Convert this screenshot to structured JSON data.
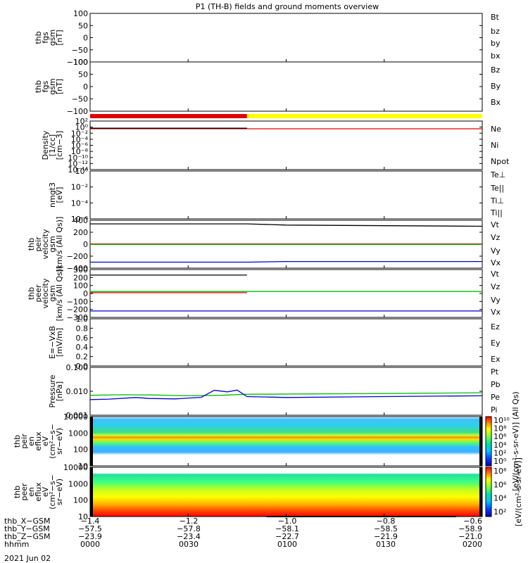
{
  "title": "P1 (TH-B) fields and ground moments overview",
  "date": "2021 Jun 02",
  "colors": {
    "black": "#000000",
    "red": "#e00000",
    "green": "#00c000",
    "blue": "#0000d0",
    "yellow": "#ffff00"
  },
  "chart_data": [
    {
      "id": "p1",
      "type": "line",
      "ylabel": [
        "thb",
        "fgs",
        "gsm",
        "[nT]"
      ],
      "yticks": [
        "100",
        "50",
        "0",
        "−50",
        "−100"
      ],
      "ylim": [
        -100,
        100
      ],
      "legend": [
        {
          "name": "Bt",
          "color": "black"
        },
        {
          "name": "bz",
          "color": "red"
        },
        {
          "name": "by",
          "color": "green"
        },
        {
          "name": "bx",
          "color": "blue"
        }
      ],
      "series": []
    },
    {
      "id": "p2",
      "type": "line",
      "ylabel": [
        "thb",
        "fgs",
        "gsm",
        "[nT]"
      ],
      "yticks": [
        "100",
        "50",
        "0",
        "−50",
        "−100"
      ],
      "ylim": [
        -130,
        100
      ],
      "legend": [
        {
          "name": "Bz",
          "color": "red"
        },
        {
          "name": "By",
          "color": "green"
        },
        {
          "name": "Bx",
          "color": "blue"
        }
      ],
      "series": []
    },
    {
      "id": "mode_bar",
      "type": "bar",
      "segments": [
        {
          "from": "0000",
          "to": "0048",
          "color": "red"
        },
        {
          "from": "0048",
          "to": "0200",
          "color": "yellow"
        }
      ]
    },
    {
      "id": "p3",
      "type": "line",
      "ylabel": [
        "Density",
        "[1/cc]",
        "[cm−3]"
      ],
      "yticks": [
        "10²",
        "10⁰",
        "10⁻²",
        "10⁻⁴",
        "10⁻⁶",
        "10⁻⁸",
        "10⁻¹⁰",
        "10⁻¹²",
        "10⁻¹⁴"
      ],
      "ylim": [
        -15,
        2
      ],
      "yscale": "log",
      "legend": [
        {
          "name": "Ne",
          "color": "red"
        },
        {
          "name": "Ni",
          "color": "black"
        },
        {
          "name": "Npot",
          "color": "blue"
        }
      ],
      "series": [
        {
          "name": "Ne",
          "color": "red",
          "x": [
            0,
            48,
            120
          ],
          "y": [
            0.2,
            0.2,
            0.2
          ]
        },
        {
          "name": "Ni",
          "color": "black",
          "x": [
            0,
            48
          ],
          "y": [
            0.3,
            0.3
          ]
        }
      ]
    },
    {
      "id": "p4",
      "type": "line",
      "ylabel": [
        "nmgt3",
        "[eV]"
      ],
      "yticks": [
        "10⁰",
        "10⁻²",
        "10⁻⁴",
        "10⁻⁶"
      ],
      "ylim": [
        -7,
        1
      ],
      "yscale": "log",
      "legend": [
        {
          "name": "Te⊥",
          "color": "red"
        },
        {
          "name": "Te||",
          "color": "black"
        },
        {
          "name": "Ti⊥",
          "color": "blue"
        },
        {
          "name": "Ti||",
          "color": "green"
        }
      ],
      "series": []
    },
    {
      "id": "p5",
      "type": "line",
      "ylabel": [
        "thb",
        "peir",
        "velocity",
        "gsm",
        "[km/s (All Qs)]"
      ],
      "yticks": [
        "400",
        "200",
        "0",
        "−200",
        "−400"
      ],
      "ylim": [
        -400,
        400
      ],
      "legend": [
        {
          "name": "Vt",
          "color": "black"
        },
        {
          "name": "Vz",
          "color": "red"
        },
        {
          "name": "Vy",
          "color": "green"
        },
        {
          "name": "Vx",
          "color": "blue"
        }
      ],
      "series": [
        {
          "name": "Vt",
          "color": "black",
          "x": [
            0,
            48,
            60,
            120
          ],
          "y": [
            340,
            340,
            320,
            300
          ]
        },
        {
          "name": "Vz",
          "color": "red",
          "x": [
            0,
            48,
            120
          ],
          "y": [
            5,
            5,
            5
          ]
        },
        {
          "name": "Vy",
          "color": "green",
          "x": [
            0,
            48,
            120
          ],
          "y": [
            -5,
            -5,
            -5
          ]
        },
        {
          "name": "Vx",
          "color": "blue",
          "x": [
            0,
            48,
            60,
            120
          ],
          "y": [
            -300,
            -300,
            -290,
            -290
          ]
        }
      ]
    },
    {
      "id": "p6",
      "type": "line",
      "ylabel": [
        "thb",
        "peer",
        "velocity",
        "gsm",
        "[km/s (All Qs)]"
      ],
      "yticks": [
        "300",
        "200",
        "100",
        "0",
        "−100",
        "−200",
        "−300"
      ],
      "ylim": [
        -300,
        300
      ],
      "legend": [
        {
          "name": "Vt",
          "color": "black"
        },
        {
          "name": "Vz",
          "color": "red"
        },
        {
          "name": "Vy",
          "color": "green"
        },
        {
          "name": "Vx",
          "color": "blue"
        }
      ],
      "series": [
        {
          "name": "Vt",
          "color": "black",
          "x": [
            0,
            48
          ],
          "y": [
            230,
            230
          ]
        },
        {
          "name": "Vz",
          "color": "red",
          "x": [
            0,
            48
          ],
          "y": [
            10,
            10
          ]
        },
        {
          "name": "Vy",
          "color": "green",
          "x": [
            0,
            48,
            120
          ],
          "y": [
            25,
            25,
            25
          ]
        },
        {
          "name": "Vx",
          "color": "blue",
          "x": [
            0,
            48,
            120
          ],
          "y": [
            -220,
            -220,
            -220
          ]
        }
      ]
    },
    {
      "id": "p7",
      "type": "line",
      "ylabel": [
        "E=−VxB",
        "[mV/m]"
      ],
      "yticks": [
        "1.0",
        "0.8",
        "0.6",
        "0.4",
        "0.2",
        "0.0"
      ],
      "ylim": [
        0,
        1
      ],
      "legend": [
        {
          "name": "Ez",
          "color": "red"
        },
        {
          "name": "Ey",
          "color": "green"
        },
        {
          "name": "Ex",
          "color": "blue"
        }
      ],
      "series": []
    },
    {
      "id": "p8",
      "type": "line",
      "ylabel": [
        "Pressure",
        "[nPa]"
      ],
      "yticks": [
        "0.100",
        "0.010",
        "0.001"
      ],
      "ylim": [
        -3,
        -1
      ],
      "yscale": "log",
      "legend": [
        {
          "name": "Pt",
          "color": "black"
        },
        {
          "name": "Pb",
          "color": "red"
        },
        {
          "name": "Pe",
          "color": "green"
        },
        {
          "name": "Pi",
          "color": "blue"
        }
      ],
      "series": [
        {
          "name": "Pe",
          "color": "green",
          "x": [
            0,
            10,
            20,
            30,
            40,
            48,
            70,
            100,
            120
          ],
          "y": [
            0.0068,
            0.0072,
            0.007,
            0.0065,
            0.0068,
            0.0075,
            0.0078,
            0.0083,
            0.0087
          ]
        },
        {
          "name": "Pi",
          "color": "blue",
          "x": [
            0,
            6,
            14,
            18,
            26,
            34,
            38,
            42,
            45,
            48,
            60,
            90,
            120
          ],
          "y": [
            0.0045,
            0.0047,
            0.0055,
            0.005,
            0.0048,
            0.0056,
            0.011,
            0.0095,
            0.0112,
            0.006,
            0.0055,
            0.006,
            0.0065
          ]
        }
      ]
    },
    {
      "id": "p9",
      "type": "heatmap",
      "ylabel": [
        "thb",
        "peir",
        "en",
        "eflux",
        "eV",
        "(cm²−s−",
        "sr−eV)"
      ],
      "yticks": [
        "10000",
        "1000",
        "100",
        "10"
      ],
      "ylim": [
        5,
        20000
      ],
      "yscale": "log"
    },
    {
      "id": "p10",
      "type": "heatmap",
      "ylabel": [
        "thb",
        "peer",
        "en",
        "eflux",
        "eV",
        "(cm²−s−",
        "sr−eV)"
      ],
      "yticks": [
        "10000",
        "1000",
        "100",
        "10"
      ],
      "ylim": [
        5,
        20000
      ],
      "yscale": "log",
      "line_overlay": {
        "x": [
          54,
          112
        ],
        "y": [
          2000,
          2000
        ]
      }
    }
  ],
  "colorbars": [
    {
      "ticks": [
        "10¹⁰",
        "10⁸",
        "10⁶",
        "10⁴",
        "10²",
        "10⁰"
      ],
      "label": "[eV/(cm²-s-sr-eV)] (All Qs)"
    },
    {
      "ticks": [
        "10⁸",
        "10⁶",
        "10⁴",
        "10²"
      ],
      "label": "[eV/(cm²-s-sr-eV)]"
    }
  ],
  "x_axis": {
    "rows": [
      {
        "label": "thb_X−GSM",
        "values": [
          "−1.4",
          "−1.2",
          "−1.0",
          "−0.8",
          "−0.6"
        ]
      },
      {
        "label": "thb_Y−GSM",
        "values": [
          "−57.5",
          "−57.8",
          "−58.1",
          "−58.5",
          "−58.9"
        ]
      },
      {
        "label": "thb_Z−GSM",
        "values": [
          "−23.9",
          "−23.4",
          "−22.7",
          "−21.9",
          "−21.0"
        ]
      },
      {
        "label": "hhmm",
        "values": [
          "0000",
          "0030",
          "0100",
          "0130",
          "0200"
        ]
      }
    ]
  }
}
